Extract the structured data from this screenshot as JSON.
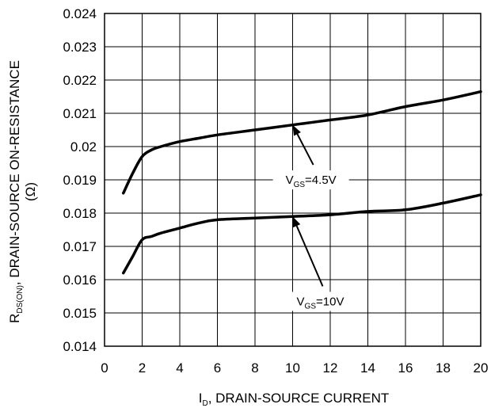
{
  "chart_data": {
    "type": "line",
    "title": "",
    "xlabel": {
      "main": "I",
      "sub": "D",
      "rest": ", DRAIN-SOURCE CURRENT"
    },
    "ylabel": {
      "main": "R",
      "sub": "DS(ON)",
      "rest": ", DRAIN-SOURCE ON-RESISTANCE",
      "unit": "(Ω)"
    },
    "xlim": [
      0,
      20
    ],
    "ylim": [
      0.014,
      0.024
    ],
    "x_ticks": [
      "0",
      "2",
      "4",
      "6",
      "8",
      "10",
      "12",
      "14",
      "16",
      "18",
      "20"
    ],
    "y_ticks": [
      "0.014",
      "0.015",
      "0.016",
      "0.017",
      "0.018",
      "0.019",
      "0.02",
      "0.021",
      "0.022",
      "0.023",
      "0.024"
    ],
    "grid": true,
    "series": [
      {
        "x": [
          1,
          1.5,
          2,
          2.5,
          3,
          4,
          5,
          6,
          8,
          10,
          12,
          14,
          16,
          18,
          20
        ],
        "y": [
          0.0186,
          0.0192,
          0.0197,
          0.0199,
          0.02,
          0.02015,
          0.02025,
          0.02035,
          0.0205,
          0.02065,
          0.0208,
          0.02095,
          0.0212,
          0.0214,
          0.02165
        ]
      },
      {
        "x": [
          1,
          1.5,
          2,
          2.5,
          3,
          4,
          5,
          6,
          8,
          10,
          12,
          14,
          16,
          18,
          20
        ],
        "y": [
          0.0162,
          0.0167,
          0.0172,
          0.0173,
          0.0174,
          0.01755,
          0.0177,
          0.0178,
          0.01785,
          0.0179,
          0.01795,
          0.01805,
          0.0181,
          0.0183,
          0.01855
        ]
      }
    ],
    "annotations": [
      {
        "label_main": "V",
        "label_sub": "GS",
        "label_rest": "=4.5V",
        "x_from": 11.1,
        "y_from": 0.01945,
        "x_to": 10.0,
        "y_to": 0.02065
      },
      {
        "label_main": "V",
        "label_sub": "GS",
        "label_rest": "=10V",
        "x_from": 11.6,
        "y_from": 0.0158,
        "x_to": 10.0,
        "y_to": 0.0179
      }
    ]
  }
}
